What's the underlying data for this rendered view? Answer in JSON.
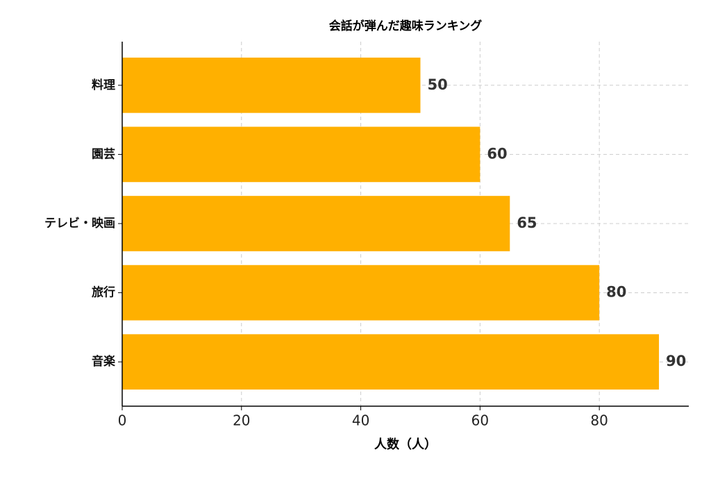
{
  "chart_data": {
    "type": "barh",
    "title": "会話が弾んだ趣味ランキング",
    "xlabel": "人数（人）",
    "categories": [
      "料理",
      "園芸",
      "テレビ・映画",
      "旅行",
      "音楽"
    ],
    "values": [
      50,
      60,
      65,
      80,
      90
    ],
    "color": "#ffb000",
    "xlim": [
      0,
      95
    ],
    "xticks": [
      0,
      20,
      40,
      60,
      80
    ],
    "grid": true
  }
}
